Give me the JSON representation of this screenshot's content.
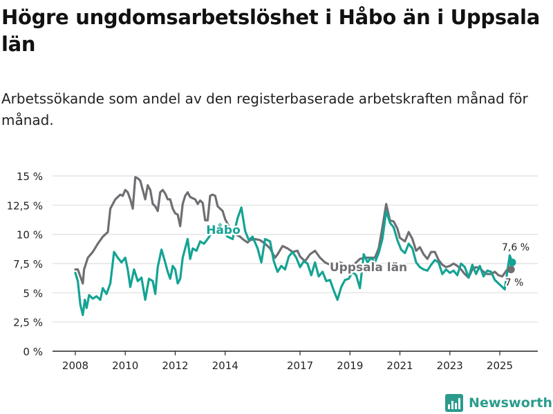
{
  "page": {
    "title": "Högre ungdomsarbetslöshet i Håbo än i Uppsala län",
    "subtitle": "Arbetssökande som andel av den registerbaserade arbetskraften månad för månad."
  },
  "brand": {
    "name": "Newsworthy"
  },
  "colors": {
    "habo": "#14a394",
    "lan": "#6f6e73",
    "grid": "#dedede",
    "axis": "#222222",
    "text": "#222222"
  },
  "chart_data": {
    "type": "line",
    "unit": "%",
    "ylim": [
      0,
      15
    ],
    "yticks": [
      0,
      2.5,
      5,
      7.5,
      10,
      12.5,
      15
    ],
    "ytick_labels": [
      "0 %",
      "2,5 %",
      "5 %",
      "7,5 %",
      "10 %",
      "12,5 %",
      "15 %"
    ],
    "xlim": [
      2008.0,
      2025.83
    ],
    "xticks": [
      2008,
      2010,
      2012,
      2014,
      2017,
      2019,
      2021,
      2023,
      2025
    ],
    "xtick_labels": [
      "2008",
      "2010",
      "2012",
      "2014",
      "2017",
      "2019",
      "2021",
      "2023",
      "2025"
    ],
    "series": [
      {
        "name": "Uppsala län",
        "label": "Uppsala län",
        "end_label": "7 %",
        "points": [
          [
            2008.0,
            7.0
          ],
          [
            2008.1,
            7.0
          ],
          [
            2008.2,
            6.4
          ],
          [
            2008.3,
            5.8
          ],
          [
            2008.35,
            7.0
          ],
          [
            2008.5,
            8.0
          ],
          [
            2008.7,
            8.5
          ],
          [
            2008.9,
            9.2
          ],
          [
            2009.1,
            9.8
          ],
          [
            2009.3,
            10.2
          ],
          [
            2009.4,
            12.2
          ],
          [
            2009.6,
            13.0
          ],
          [
            2009.8,
            13.4
          ],
          [
            2009.9,
            13.3
          ],
          [
            2010.0,
            13.8
          ],
          [
            2010.1,
            13.6
          ],
          [
            2010.2,
            13.0
          ],
          [
            2010.3,
            12.2
          ],
          [
            2010.4,
            14.9
          ],
          [
            2010.5,
            14.8
          ],
          [
            2010.6,
            14.6
          ],
          [
            2010.7,
            13.8
          ],
          [
            2010.8,
            13.0
          ],
          [
            2010.9,
            14.2
          ],
          [
            2011.0,
            13.8
          ],
          [
            2011.1,
            12.6
          ],
          [
            2011.2,
            12.4
          ],
          [
            2011.3,
            12.0
          ],
          [
            2011.4,
            13.6
          ],
          [
            2011.5,
            13.8
          ],
          [
            2011.6,
            13.5
          ],
          [
            2011.7,
            13.0
          ],
          [
            2011.8,
            13.0
          ],
          [
            2011.9,
            12.2
          ],
          [
            2012.0,
            11.8
          ],
          [
            2012.1,
            11.7
          ],
          [
            2012.2,
            10.7
          ],
          [
            2012.3,
            12.6
          ],
          [
            2012.4,
            13.3
          ],
          [
            2012.5,
            13.6
          ],
          [
            2012.6,
            13.2
          ],
          [
            2012.8,
            13.0
          ],
          [
            2012.9,
            12.6
          ],
          [
            2013.0,
            12.9
          ],
          [
            2013.1,
            12.7
          ],
          [
            2013.2,
            11.2
          ],
          [
            2013.3,
            11.2
          ],
          [
            2013.4,
            13.3
          ],
          [
            2013.5,
            13.4
          ],
          [
            2013.6,
            13.3
          ],
          [
            2013.7,
            12.4
          ],
          [
            2013.9,
            12.0
          ],
          [
            2014.0,
            11.3
          ],
          [
            2014.1,
            10.9
          ],
          [
            2014.2,
            10.5
          ],
          [
            2014.4,
            10.0
          ],
          [
            2014.6,
            9.8
          ],
          [
            2014.7,
            9.6
          ],
          [
            2014.9,
            9.3
          ],
          [
            2015.0,
            9.5
          ],
          [
            2015.2,
            9.6
          ],
          [
            2015.4,
            9.5
          ],
          [
            2015.6,
            9.2
          ],
          [
            2015.8,
            8.8
          ],
          [
            2016.0,
            8.0
          ],
          [
            2016.1,
            8.3
          ],
          [
            2016.3,
            9.0
          ],
          [
            2016.5,
            8.8
          ],
          [
            2016.7,
            8.5
          ],
          [
            2016.9,
            8.6
          ],
          [
            2017.0,
            8.1
          ],
          [
            2017.2,
            7.7
          ],
          [
            2017.4,
            8.3
          ],
          [
            2017.6,
            8.6
          ],
          [
            2017.8,
            8.0
          ],
          [
            2018.0,
            7.6
          ],
          [
            2018.2,
            7.4
          ],
          [
            2018.4,
            7.3
          ],
          [
            2018.6,
            7.6
          ],
          [
            2018.8,
            7.4
          ],
          [
            2019.0,
            7.3
          ],
          [
            2019.2,
            7.5
          ],
          [
            2019.4,
            7.9
          ],
          [
            2019.6,
            8.0
          ],
          [
            2019.8,
            8.0
          ],
          [
            2020.0,
            8.0
          ],
          [
            2020.15,
            8.8
          ],
          [
            2020.3,
            10.6
          ],
          [
            2020.45,
            12.6
          ],
          [
            2020.6,
            11.2
          ],
          [
            2020.75,
            11.1
          ],
          [
            2020.9,
            10.5
          ],
          [
            2021.0,
            9.7
          ],
          [
            2021.2,
            9.4
          ],
          [
            2021.35,
            10.2
          ],
          [
            2021.5,
            9.6
          ],
          [
            2021.65,
            8.6
          ],
          [
            2021.8,
            8.9
          ],
          [
            2021.95,
            8.3
          ],
          [
            2022.1,
            7.9
          ],
          [
            2022.25,
            8.5
          ],
          [
            2022.4,
            8.5
          ],
          [
            2022.55,
            7.8
          ],
          [
            2022.7,
            7.4
          ],
          [
            2022.85,
            7.2
          ],
          [
            2023.0,
            7.3
          ],
          [
            2023.15,
            7.5
          ],
          [
            2023.3,
            7.3
          ],
          [
            2023.45,
            7.0
          ],
          [
            2023.6,
            6.6
          ],
          [
            2023.75,
            6.3
          ],
          [
            2023.9,
            7.0
          ],
          [
            2024.05,
            7.2
          ],
          [
            2024.2,
            7.1
          ],
          [
            2024.35,
            6.8
          ],
          [
            2024.5,
            6.6
          ],
          [
            2024.65,
            6.6
          ],
          [
            2024.8,
            6.8
          ],
          [
            2024.95,
            6.5
          ],
          [
            2025.1,
            6.4
          ],
          [
            2025.3,
            7.0
          ],
          [
            2025.45,
            7.0
          ]
        ]
      },
      {
        "name": "Håbo",
        "label": "Håbo",
        "end_label": "7,6 %",
        "points": [
          [
            2008.0,
            6.7
          ],
          [
            2008.1,
            6.0
          ],
          [
            2008.2,
            4.0
          ],
          [
            2008.3,
            3.1
          ],
          [
            2008.38,
            4.4
          ],
          [
            2008.45,
            3.7
          ],
          [
            2008.55,
            4.8
          ],
          [
            2008.7,
            4.5
          ],
          [
            2008.85,
            4.7
          ],
          [
            2009.0,
            4.4
          ],
          [
            2009.1,
            5.4
          ],
          [
            2009.25,
            4.9
          ],
          [
            2009.4,
            5.8
          ],
          [
            2009.55,
            8.5
          ],
          [
            2009.7,
            8.0
          ],
          [
            2009.85,
            7.6
          ],
          [
            2010.0,
            8.0
          ],
          [
            2010.1,
            7.0
          ],
          [
            2010.2,
            5.5
          ],
          [
            2010.35,
            7.0
          ],
          [
            2010.5,
            6.0
          ],
          [
            2010.65,
            6.3
          ],
          [
            2010.8,
            4.4
          ],
          [
            2010.95,
            6.2
          ],
          [
            2011.1,
            6.0
          ],
          [
            2011.2,
            4.9
          ],
          [
            2011.3,
            7.2
          ],
          [
            2011.45,
            8.7
          ],
          [
            2011.6,
            7.6
          ],
          [
            2011.7,
            6.8
          ],
          [
            2011.8,
            6.2
          ],
          [
            2011.9,
            7.3
          ],
          [
            2012.0,
            7.0
          ],
          [
            2012.1,
            5.8
          ],
          [
            2012.2,
            6.2
          ],
          [
            2012.3,
            8.0
          ],
          [
            2012.5,
            9.6
          ],
          [
            2012.6,
            7.9
          ],
          [
            2012.7,
            8.8
          ],
          [
            2012.85,
            8.6
          ],
          [
            2013.0,
            9.4
          ],
          [
            2013.15,
            9.2
          ],
          [
            2013.3,
            9.6
          ],
          [
            2013.45,
            10.1
          ],
          [
            2013.6,
            10.6
          ],
          [
            2013.75,
            10.4
          ],
          [
            2013.9,
            10.3
          ],
          [
            2014.1,
            9.8
          ],
          [
            2014.3,
            9.6
          ],
          [
            2014.5,
            11.4
          ],
          [
            2014.65,
            12.3
          ],
          [
            2014.8,
            10.3
          ],
          [
            2014.95,
            9.5
          ],
          [
            2015.1,
            9.8
          ],
          [
            2015.3,
            8.8
          ],
          [
            2015.45,
            7.6
          ],
          [
            2015.6,
            9.6
          ],
          [
            2015.8,
            9.4
          ],
          [
            2015.95,
            7.7
          ],
          [
            2016.1,
            6.8
          ],
          [
            2016.25,
            7.3
          ],
          [
            2016.4,
            7.0
          ],
          [
            2016.55,
            8.1
          ],
          [
            2016.7,
            8.5
          ],
          [
            2016.85,
            8.0
          ],
          [
            2017.0,
            7.2
          ],
          [
            2017.15,
            7.7
          ],
          [
            2017.3,
            7.5
          ],
          [
            2017.45,
            6.5
          ],
          [
            2017.6,
            7.6
          ],
          [
            2017.75,
            6.4
          ],
          [
            2017.9,
            6.8
          ],
          [
            2018.05,
            6.0
          ],
          [
            2018.2,
            6.1
          ],
          [
            2018.35,
            5.2
          ],
          [
            2018.5,
            4.4
          ],
          [
            2018.65,
            5.5
          ],
          [
            2018.8,
            6.1
          ],
          [
            2018.95,
            6.2
          ],
          [
            2019.1,
            6.8
          ],
          [
            2019.25,
            6.5
          ],
          [
            2019.4,
            5.4
          ],
          [
            2019.55,
            8.3
          ],
          [
            2019.7,
            7.6
          ],
          [
            2019.85,
            8.0
          ],
          [
            2020.0,
            7.6
          ],
          [
            2020.15,
            8.4
          ],
          [
            2020.3,
            9.6
          ],
          [
            2020.45,
            12.0
          ],
          [
            2020.6,
            11.0
          ],
          [
            2020.75,
            10.6
          ],
          [
            2020.9,
            9.5
          ],
          [
            2021.05,
            8.7
          ],
          [
            2021.2,
            8.4
          ],
          [
            2021.35,
            9.2
          ],
          [
            2021.5,
            8.8
          ],
          [
            2021.65,
            7.6
          ],
          [
            2021.8,
            7.2
          ],
          [
            2021.95,
            7.0
          ],
          [
            2022.1,
            6.9
          ],
          [
            2022.25,
            7.4
          ],
          [
            2022.4,
            7.8
          ],
          [
            2022.55,
            7.6
          ],
          [
            2022.7,
            6.6
          ],
          [
            2022.85,
            7.0
          ],
          [
            2023.0,
            6.7
          ],
          [
            2023.15,
            6.9
          ],
          [
            2023.3,
            6.5
          ],
          [
            2023.45,
            7.5
          ],
          [
            2023.6,
            7.2
          ],
          [
            2023.75,
            6.3
          ],
          [
            2023.9,
            7.4
          ],
          [
            2024.05,
            6.6
          ],
          [
            2024.2,
            7.3
          ],
          [
            2024.35,
            6.4
          ],
          [
            2024.5,
            6.9
          ],
          [
            2024.65,
            6.8
          ],
          [
            2024.8,
            6.1
          ],
          [
            2024.95,
            5.8
          ],
          [
            2025.1,
            5.5
          ],
          [
            2025.2,
            5.3
          ],
          [
            2025.3,
            6.8
          ],
          [
            2025.4,
            8.2
          ],
          [
            2025.5,
            7.6
          ]
        ]
      }
    ]
  }
}
